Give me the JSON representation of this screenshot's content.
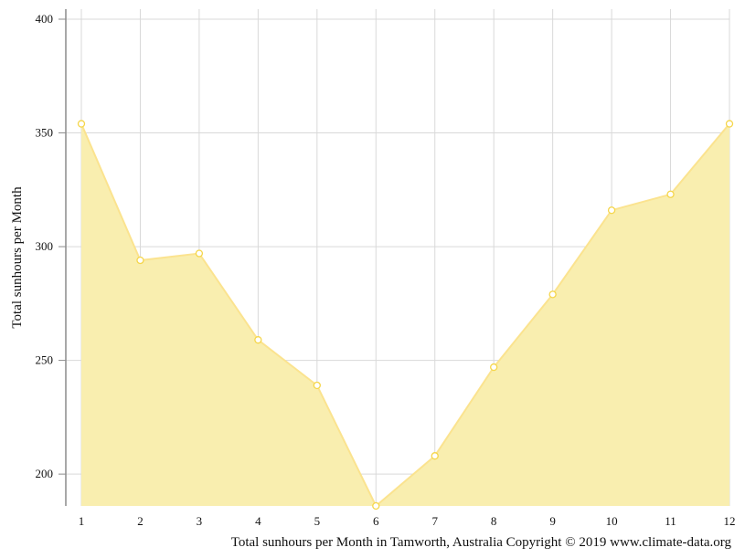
{
  "chart_data": {
    "type": "area",
    "x": [
      1,
      2,
      3,
      4,
      5,
      6,
      7,
      8,
      9,
      10,
      11,
      12
    ],
    "categories": [
      "1",
      "2",
      "3",
      "4",
      "5",
      "6",
      "7",
      "8",
      "9",
      "10",
      "11",
      "12"
    ],
    "series": [
      {
        "values": [
          354,
          294,
          297,
          259,
          239,
          186,
          208,
          247,
          279,
          316,
          323,
          354
        ]
      }
    ],
    "ylabel": "Total sunhours per Month",
    "xlabel": "Total sunhours per Month in Tamworth, Australia Copyright © 2019 www.climate-data.org",
    "ylim": [
      186,
      400
    ],
    "yticks": [
      200,
      250,
      300,
      350,
      400
    ],
    "grid": true
  },
  "colors": {
    "area_fill": "#f9eeaf",
    "line": "#fbe38f",
    "marker_stroke": "#f5d64a",
    "marker_fill": "#ffffff",
    "grid": "#d9d9d9",
    "axis": "#8c8c8c"
  }
}
